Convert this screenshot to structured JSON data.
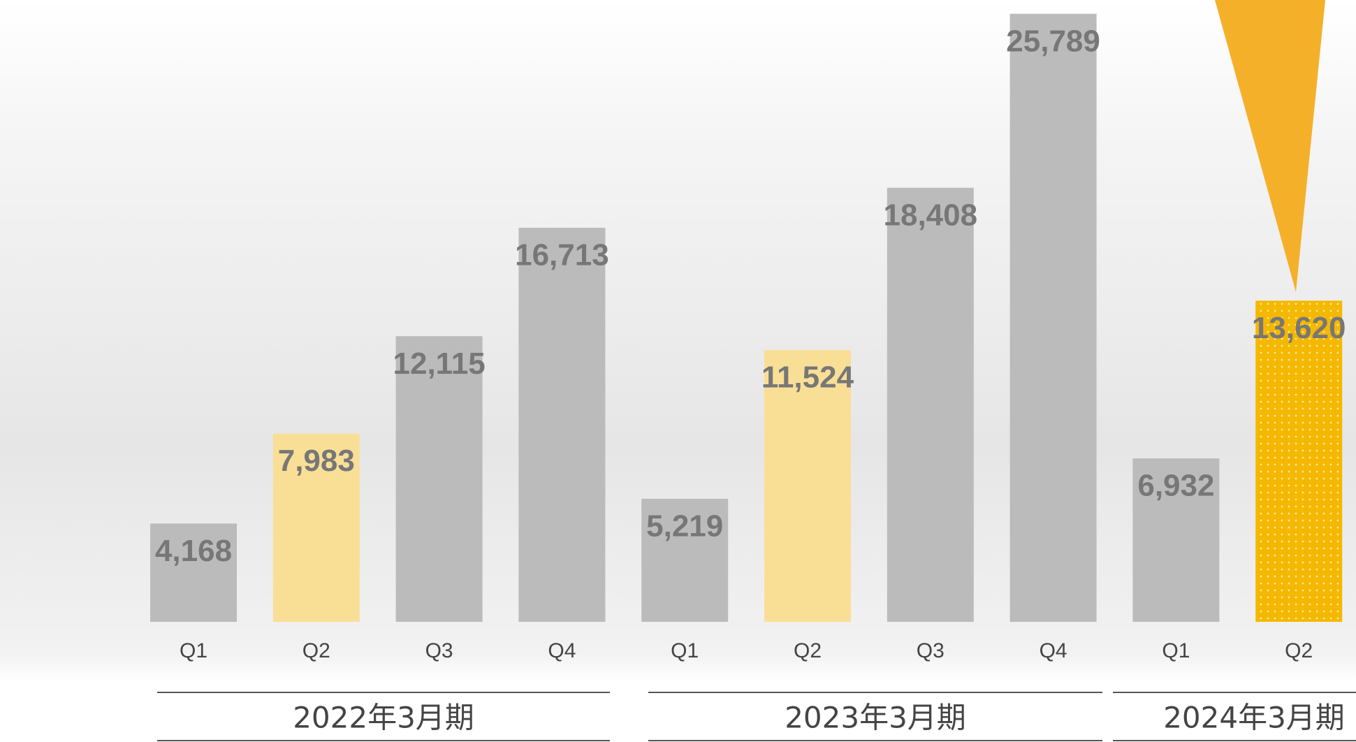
{
  "chart_data": {
    "type": "bar",
    "categories": [
      "Q1",
      "Q2",
      "Q3",
      "Q4",
      "Q1",
      "Q2",
      "Q3",
      "Q4",
      "Q1",
      "Q2"
    ],
    "values": [
      4168,
      7983,
      12115,
      16713,
      5219,
      11524,
      18408,
      25789,
      6932,
      13620
    ],
    "value_labels": [
      "4,168",
      "7,983",
      "12,115",
      "16,713",
      "5,219",
      "11,524",
      "18,408",
      "25,789",
      "6,932",
      "13,620"
    ],
    "colors": [
      "#bbbbbb",
      "#f9df96",
      "#bbbbbb",
      "#bbbbbb",
      "#bbbbbb",
      "#f9df96",
      "#bbbbbb",
      "#bbbbbb",
      "#bbbbbb",
      "#f5b800"
    ],
    "ylim": [
      0,
      26000
    ],
    "groups": [
      "2022年3月期",
      "2023年3月期",
      "2024年3月期"
    ]
  }
}
